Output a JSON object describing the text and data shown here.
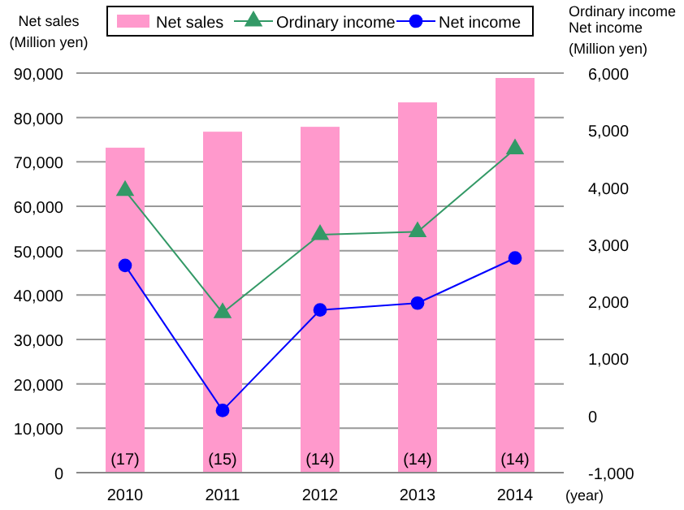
{
  "chart_data": {
    "type": "bar",
    "categories": [
      "2010",
      "2011",
      "2012",
      "2013",
      "2014"
    ],
    "series": [
      {
        "name": "Net sales",
        "color": "#ff99cc",
        "values": [
          73200,
          76800,
          77900,
          83400,
          88900
        ]
      },
      {
        "name": "Ordinary income",
        "type": "line",
        "axis": "y2",
        "color": "#339966",
        "marker": "triangle",
        "values": [
          3940,
          1800,
          3170,
          3220,
          4670
        ]
      },
      {
        "name": "Net income",
        "type": "line",
        "axis": "y2",
        "color": "#0000ff",
        "marker": "circle",
        "values": [
          2630,
          90,
          1850,
          1970,
          2760
        ]
      }
    ],
    "ylabel": "Net sales\n(Million yen)",
    "y2label": "Ordinary income\nNet income\n(Million yen)",
    "xlabel": "(year)",
    "ylim": [
      0,
      90000
    ],
    "yticks": [
      {
        "value": 0,
        "label": "0"
      },
      {
        "value": 10000,
        "label": "10,000"
      },
      {
        "value": 20000,
        "label": "20,000"
      },
      {
        "value": 30000,
        "label": "30,000"
      },
      {
        "value": 40000,
        "label": "40,000"
      },
      {
        "value": 50000,
        "label": "50,000"
      },
      {
        "value": 60000,
        "label": "60,000"
      },
      {
        "value": 70000,
        "label": "70,000"
      },
      {
        "value": 80000,
        "label": "80,000"
      },
      {
        "value": 90000,
        "label": "90,000"
      }
    ],
    "y2lim": [
      -1000,
      6000
    ],
    "y2ticks": [
      {
        "value": -1000,
        "label": "-1,000"
      },
      0,
      {
        "value": 1000,
        "label": "1,000"
      },
      {
        "value": 2000,
        "label": "2,000"
      },
      {
        "value": 3000,
        "label": "3,000"
      },
      {
        "value": 4000,
        "label": "4,000"
      },
      {
        "value": 5000,
        "label": "5,000"
      },
      {
        "value": 6000,
        "label": "6,000"
      }
    ],
    "annotations": [
      "(17)",
      "(15)",
      "(14)",
      "(14)",
      "(14)"
    ],
    "grid": "y",
    "legend": "top"
  }
}
